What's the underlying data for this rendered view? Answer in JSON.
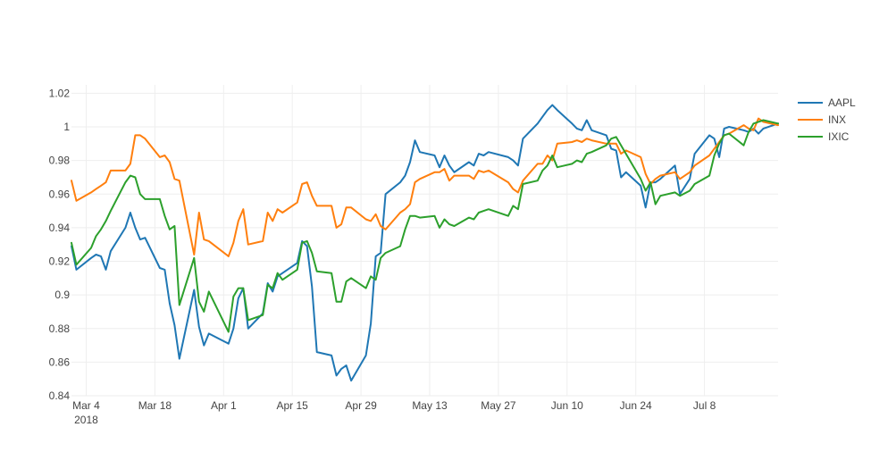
{
  "chart_data": {
    "type": "line",
    "ylim": [
      0.84,
      1.025
    ],
    "xlim": [
      "2018-03-01",
      "2018-07-23"
    ],
    "grid": true,
    "legend_position": "right",
    "x_ticks": [
      "Mar 4",
      "Mar 18",
      "Apr 1",
      "Apr 15",
      "Apr 29",
      "May 13",
      "May 27",
      "Jun 10",
      "Jun 24",
      "Jul 8"
    ],
    "x_tick_dates": [
      "2018-03-04",
      "2018-03-18",
      "2018-04-01",
      "2018-04-15",
      "2018-04-29",
      "2018-05-13",
      "2018-05-27",
      "2018-06-10",
      "2018-06-24",
      "2018-07-08"
    ],
    "x_year_label": "2018",
    "y_ticks": [
      "0.84",
      "0.86",
      "0.88",
      "0.9",
      "0.92",
      "0.94",
      "0.96",
      "0.98",
      "1",
      "1.02"
    ],
    "y_tick_values": [
      0.84,
      0.86,
      0.88,
      0.9,
      0.92,
      0.94,
      0.96,
      0.98,
      1.0,
      1.02
    ],
    "x": [
      "2018-03-01",
      "2018-03-02",
      "2018-03-05",
      "2018-03-06",
      "2018-03-07",
      "2018-03-08",
      "2018-03-09",
      "2018-03-12",
      "2018-03-13",
      "2018-03-14",
      "2018-03-15",
      "2018-03-16",
      "2018-03-19",
      "2018-03-20",
      "2018-03-21",
      "2018-03-22",
      "2018-03-23",
      "2018-03-26",
      "2018-03-27",
      "2018-03-28",
      "2018-03-29",
      "2018-04-02",
      "2018-04-03",
      "2018-04-04",
      "2018-04-05",
      "2018-04-06",
      "2018-04-09",
      "2018-04-10",
      "2018-04-11",
      "2018-04-12",
      "2018-04-13",
      "2018-04-16",
      "2018-04-17",
      "2018-04-18",
      "2018-04-19",
      "2018-04-20",
      "2018-04-23",
      "2018-04-24",
      "2018-04-25",
      "2018-04-26",
      "2018-04-27",
      "2018-04-30",
      "2018-05-01",
      "2018-05-02",
      "2018-05-03",
      "2018-05-04",
      "2018-05-07",
      "2018-05-08",
      "2018-05-09",
      "2018-05-10",
      "2018-05-11",
      "2018-05-14",
      "2018-05-15",
      "2018-05-16",
      "2018-05-17",
      "2018-05-18",
      "2018-05-21",
      "2018-05-22",
      "2018-05-23",
      "2018-05-24",
      "2018-05-25",
      "2018-05-29",
      "2018-05-30",
      "2018-05-31",
      "2018-06-01",
      "2018-06-04",
      "2018-06-05",
      "2018-06-06",
      "2018-06-07",
      "2018-06-08",
      "2018-06-11",
      "2018-06-12",
      "2018-06-13",
      "2018-06-14",
      "2018-06-15",
      "2018-06-18",
      "2018-06-19",
      "2018-06-20",
      "2018-06-21",
      "2018-06-22",
      "2018-06-25",
      "2018-06-26",
      "2018-06-27",
      "2018-06-28",
      "2018-06-29",
      "2018-07-02",
      "2018-07-03",
      "2018-07-05",
      "2018-07-06",
      "2018-07-09",
      "2018-07-10",
      "2018-07-11",
      "2018-07-12",
      "2018-07-13",
      "2018-07-16",
      "2018-07-17",
      "2018-07-18",
      "2018-07-19",
      "2018-07-20",
      "2018-07-23"
    ],
    "series": [
      {
        "name": "AAPL",
        "color": "#1f77b4",
        "values": [
          0.929,
          0.915,
          0.922,
          0.924,
          0.923,
          0.915,
          0.926,
          0.94,
          0.949,
          0.94,
          0.933,
          0.934,
          0.916,
          0.915,
          0.895,
          0.882,
          0.862,
          0.903,
          0.881,
          0.87,
          0.877,
          0.871,
          0.88,
          0.898,
          0.904,
          0.88,
          0.889,
          0.907,
          0.902,
          0.911,
          0.913,
          0.919,
          0.932,
          0.929,
          0.905,
          0.866,
          0.864,
          0.852,
          0.856,
          0.858,
          0.849,
          0.864,
          0.883,
          0.923,
          0.925,
          0.96,
          0.967,
          0.971,
          0.979,
          0.992,
          0.985,
          0.983,
          0.976,
          0.983,
          0.977,
          0.973,
          0.979,
          0.977,
          0.984,
          0.983,
          0.985,
          0.982,
          0.98,
          0.977,
          0.993,
          1.002,
          1.006,
          1.01,
          1.013,
          1.01,
          1.002,
          0.999,
          0.998,
          1.004,
          0.998,
          0.995,
          0.987,
          0.986,
          0.97,
          0.973,
          0.965,
          0.952,
          0.967,
          0.967,
          0.969,
          0.977,
          0.96,
          0.969,
          0.984,
          0.995,
          0.993,
          0.982,
          0.999,
          1.0,
          0.998,
          0.997,
          0.999,
          0.996,
          0.999,
          1.002
        ]
      },
      {
        "name": "INX",
        "color": "#ff7f0e",
        "values": [
          0.968,
          0.956,
          0.961,
          0.963,
          0.965,
          0.967,
          0.974,
          0.974,
          0.978,
          0.995,
          0.995,
          0.993,
          0.982,
          0.983,
          0.979,
          0.969,
          0.968,
          0.924,
          0.949,
          0.933,
          0.932,
          0.923,
          0.931,
          0.944,
          0.951,
          0.93,
          0.932,
          0.949,
          0.944,
          0.951,
          0.949,
          0.955,
          0.966,
          0.967,
          0.959,
          0.953,
          0.953,
          0.94,
          0.942,
          0.952,
          0.952,
          0.945,
          0.944,
          0.948,
          0.941,
          0.939,
          0.949,
          0.951,
          0.954,
          0.967,
          0.969,
          0.973,
          0.973,
          0.975,
          0.968,
          0.971,
          0.971,
          0.969,
          0.974,
          0.973,
          0.974,
          0.967,
          0.963,
          0.961,
          0.968,
          0.978,
          0.978,
          0.983,
          0.98,
          0.99,
          0.991,
          0.992,
          0.991,
          0.993,
          0.992,
          0.99,
          0.99,
          0.99,
          0.984,
          0.986,
          0.982,
          0.972,
          0.966,
          0.969,
          0.971,
          0.973,
          0.969,
          0.973,
          0.977,
          0.983,
          0.987,
          0.991,
          0.995,
          0.996,
          1.001,
          0.999,
          0.998,
          1.005,
          1.003,
          1.001
        ]
      },
      {
        "name": "IXIC",
        "color": "#2ca02c",
        "values": [
          0.931,
          0.918,
          0.928,
          0.935,
          0.939,
          0.944,
          0.95,
          0.967,
          0.971,
          0.97,
          0.96,
          0.957,
          0.957,
          0.947,
          0.939,
          0.941,
          0.894,
          0.922,
          0.896,
          0.89,
          0.902,
          0.878,
          0.899,
          0.904,
          0.904,
          0.885,
          0.888,
          0.906,
          0.904,
          0.913,
          0.909,
          0.915,
          0.931,
          0.932,
          0.925,
          0.914,
          0.913,
          0.896,
          0.896,
          0.908,
          0.91,
          0.904,
          0.911,
          0.909,
          0.922,
          0.925,
          0.929,
          0.939,
          0.947,
          0.947,
          0.946,
          0.947,
          0.94,
          0.945,
          0.942,
          0.941,
          0.946,
          0.945,
          0.949,
          0.95,
          0.951,
          0.947,
          0.953,
          0.951,
          0.966,
          0.968,
          0.974,
          0.977,
          0.983,
          0.976,
          0.978,
          0.98,
          0.979,
          0.984,
          0.985,
          0.989,
          0.993,
          0.994,
          0.989,
          0.984,
          0.969,
          0.962,
          0.967,
          0.954,
          0.959,
          0.961,
          0.959,
          0.962,
          0.966,
          0.971,
          0.983,
          0.99,
          0.995,
          0.996,
          0.989,
          0.997,
          1.002,
          1.003,
          1.004,
          1.002
        ]
      }
    ]
  }
}
